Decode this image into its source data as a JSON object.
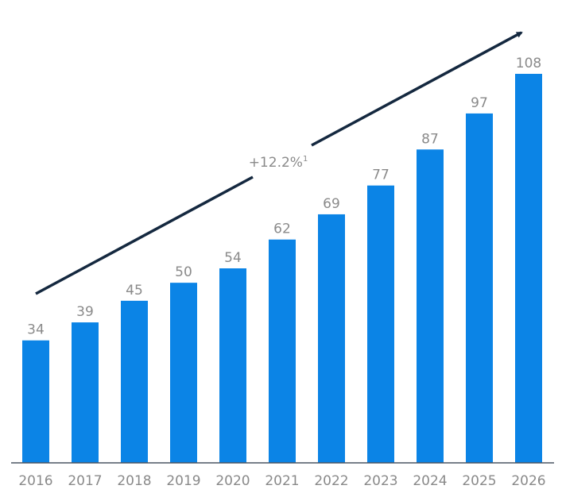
{
  "chart_data": {
    "type": "bar",
    "title": "",
    "xlabel": "",
    "ylabel": "",
    "categories": [
      "2016",
      "2017",
      "2018",
      "2019",
      "2020",
      "2021",
      "2022",
      "2023",
      "2024",
      "2025",
      "2026"
    ],
    "values": [
      34,
      39,
      45,
      50,
      54,
      62,
      69,
      77,
      87,
      97,
      108
    ],
    "value_labels": [
      "34",
      "39",
      "45",
      "50",
      "54",
      "62",
      "69",
      "77",
      "87",
      "97",
      "108"
    ],
    "ylim": [
      0,
      108
    ],
    "grid": false,
    "annotation": {
      "text": "+12.2%",
      "superscript": "1",
      "description": "CAGR trend arrow"
    },
    "colors": {
      "bar": "#0b84e6",
      "arrow": "#14283f",
      "text": "#8a8a8a",
      "axis": "#4a5563"
    }
  }
}
